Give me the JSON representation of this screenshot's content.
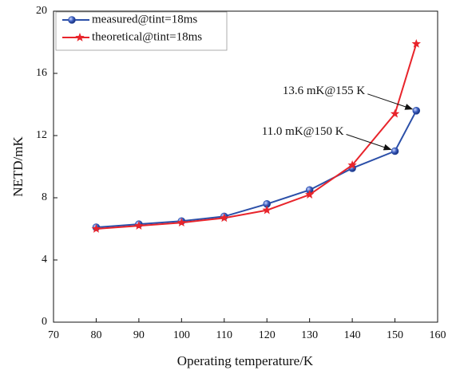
{
  "chart_data": {
    "type": "line",
    "x_label": "Operating temperature/K",
    "y_label": "NETD/mK",
    "x": [
      80,
      90,
      100,
      110,
      120,
      130,
      140,
      150,
      155
    ],
    "series": [
      {
        "name": "measured@tint=18ms",
        "color": "#2b4fa8",
        "marker": "circle",
        "values": [
          6.1,
          6.3,
          6.5,
          6.8,
          7.6,
          8.5,
          9.9,
          11.0,
          13.6
        ]
      },
      {
        "name": "theoretical@tint=18ms",
        "color": "#e8242b",
        "marker": "star",
        "values": [
          6.0,
          6.2,
          6.4,
          6.7,
          7.2,
          8.2,
          10.1,
          13.4,
          17.9
        ]
      }
    ],
    "xlim": [
      70,
      160
    ],
    "xticks": [
      70,
      80,
      90,
      100,
      110,
      120,
      130,
      140,
      150,
      160
    ],
    "ylim": [
      0,
      20
    ],
    "yticks": [
      0,
      4,
      8,
      12,
      16,
      20
    ],
    "legend": "upper left",
    "annotations": [
      {
        "text": "13.6 mK@155 K",
        "x": 155,
        "y": 13.6
      },
      {
        "text": "11.0 mK@150 K",
        "x": 150,
        "y": 11.0
      }
    ]
  }
}
